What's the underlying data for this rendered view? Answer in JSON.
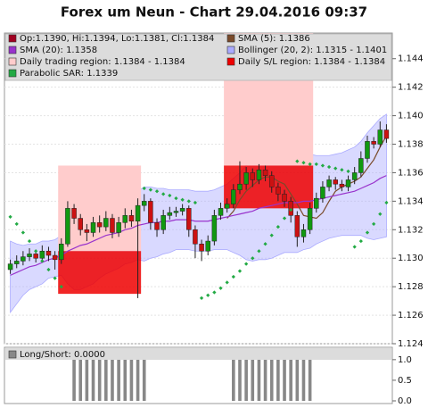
{
  "chart_data": [
    {
      "type": "candlestick",
      "title": "Forex um Neun - Chart 29.04.2016 09:37",
      "ylim": [
        1.124,
        1.1458
      ],
      "yticks": [
        1.124,
        1.126,
        1.128,
        {
          "value": 1.13,
          "label": "1.130"
        },
        1.132,
        1.134,
        1.136,
        1.138,
        {
          "value": 1.14,
          "label": "1.140"
        },
        1.142,
        1.144
      ],
      "grid": true,
      "series": [
        {
          "name": "Op:1.1390, Hi:1.1394, Lo:1.1381, Cl:1.1384",
          "kind": "candles",
          "color": "#a00020",
          "up_color": "#119911",
          "down_color": "#cc1111",
          "open": [
            1.1292,
            1.1296,
            1.1298,
            1.1301,
            1.1303,
            1.13,
            1.1305,
            1.1302,
            1.1299,
            1.131,
            1.1335,
            1.1328,
            1.132,
            1.1318,
            1.1325,
            1.1322,
            1.1328,
            1.1318,
            1.1325,
            1.133,
            1.1326,
            1.1337,
            1.134,
            1.1325,
            1.132,
            1.133,
            1.1332,
            1.1333,
            1.1335,
            1.132,
            1.131,
            1.1305,
            1.1312,
            1.133,
            1.1335,
            1.1338,
            1.1348,
            1.1352,
            1.136,
            1.1355,
            1.1362,
            1.1358,
            1.135,
            1.1345,
            1.134,
            1.133,
            1.1315,
            1.132,
            1.1335,
            1.1342,
            1.135,
            1.1355,
            1.1352,
            1.135,
            1.1355,
            1.136,
            1.137,
            1.1382,
            1.138,
            1.139
          ],
          "high": [
            1.1299,
            1.1302,
            1.1305,
            1.1307,
            1.1306,
            1.1309,
            1.1308,
            1.1305,
            1.1314,
            1.134,
            1.1338,
            1.1331,
            1.1324,
            1.1329,
            1.133,
            1.1333,
            1.1331,
            1.1329,
            1.1335,
            1.1334,
            1.1342,
            1.1345,
            1.1342,
            1.1328,
            1.1334,
            1.1336,
            1.1336,
            1.1338,
            1.1337,
            1.1323,
            1.1313,
            1.1316,
            1.1334,
            1.1339,
            1.1342,
            1.1352,
            1.1368,
            1.1364,
            1.1363,
            1.1366,
            1.1365,
            1.1361,
            1.1353,
            1.1348,
            1.1343,
            1.1333,
            1.1324,
            1.1339,
            1.1346,
            1.1354,
            1.1358,
            1.1357,
            1.1355,
            1.1358,
            1.1364,
            1.1375,
            1.1386,
            1.1385,
            1.1396,
            1.1394
          ],
          "low": [
            1.1289,
            1.1293,
            1.1295,
            1.1298,
            1.1297,
            1.1297,
            1.1298,
            1.1292,
            1.1296,
            1.1308,
            1.1324,
            1.1316,
            1.1312,
            1.1315,
            1.1318,
            1.1319,
            1.1314,
            1.1315,
            1.1321,
            1.1322,
            1.1272,
            1.1333,
            1.132,
            1.1315,
            1.1317,
            1.1327,
            1.1329,
            1.133,
            1.1315,
            1.13,
            1.1298,
            1.1302,
            1.1309,
            1.1327,
            1.1332,
            1.1335,
            1.1345,
            1.1348,
            1.135,
            1.1352,
            1.1354,
            1.1346,
            1.134,
            1.1336,
            1.1325,
            1.1308,
            1.1311,
            1.1317,
            1.1332,
            1.1339,
            1.1347,
            1.1348,
            1.1347,
            1.1347,
            1.1352,
            1.1357,
            1.1367,
            1.1377,
            1.1378,
            1.1381
          ],
          "close": [
            1.1296,
            1.1298,
            1.1301,
            1.1303,
            1.13,
            1.1305,
            1.1302,
            1.1299,
            1.131,
            1.1335,
            1.1328,
            1.132,
            1.1318,
            1.1325,
            1.1322,
            1.1328,
            1.1318,
            1.1325,
            1.133,
            1.1326,
            1.1337,
            1.134,
            1.1325,
            1.132,
            1.133,
            1.1332,
            1.1333,
            1.1335,
            1.132,
            1.131,
            1.1305,
            1.1312,
            1.133,
            1.1335,
            1.1338,
            1.1348,
            1.1352,
            1.136,
            1.1355,
            1.1362,
            1.1358,
            1.135,
            1.1345,
            1.134,
            1.133,
            1.1315,
            1.132,
            1.1335,
            1.1342,
            1.135,
            1.1355,
            1.1352,
            1.135,
            1.1355,
            1.136,
            1.137,
            1.1382,
            1.138,
            1.139,
            1.1384
          ]
        },
        {
          "name": "SMA (5): 1.1386",
          "kind": "line",
          "color": "#7a4a2a",
          "values": [
            null,
            null,
            null,
            null,
            null,
            null,
            null,
            null,
            null,
            null,
            null,
            null,
            null,
            null,
            null,
            null,
            null,
            null,
            null,
            null,
            null,
            null,
            null,
            null,
            null,
            null,
            null,
            null,
            null,
            null,
            null,
            null,
            null,
            null,
            1.1328,
            1.1333,
            1.1341,
            1.1347,
            1.1351,
            1.1355,
            1.1357,
            1.1357,
            1.1354,
            1.1352,
            1.1345,
            1.1338,
            1.133,
            1.1329,
            1.1328,
            1.1332,
            1.134,
            1.1347,
            1.135,
            1.1352,
            1.1354,
            1.1357,
            1.1363,
            1.1369,
            1.1378,
            1.1386
          ]
        },
        {
          "name": "SMA (20): 1.1358",
          "kind": "line",
          "color": "#9933cc",
          "values": [
            1.1288,
            1.129,
            1.1292,
            1.1294,
            1.1295,
            1.1297,
            1.1299,
            1.13,
            1.1302,
            1.1305,
            1.1307,
            1.1309,
            1.131,
            1.1312,
            1.1314,
            1.1316,
            1.1317,
            1.1318,
            1.132,
            1.1321,
            1.1323,
            1.1324,
            1.1325,
            1.1325,
            1.1326,
            1.1326,
            1.1327,
            1.1327,
            1.1327,
            1.1326,
            1.1326,
            1.1326,
            1.1327,
            1.1328,
            1.1329,
            1.133,
            1.1331,
            1.1332,
            1.1333,
            1.1335,
            1.1336,
            1.1337,
            1.1338,
            1.1339,
            1.1339,
            1.1339,
            1.134,
            1.134,
            1.1341,
            1.1342,
            1.1343,
            1.1344,
            1.1345,
            1.1346,
            1.1347,
            1.1349,
            1.1351,
            1.1353,
            1.1356,
            1.1358
          ]
        },
        {
          "name": "Bollinger (20, 2): 1.1315 - 1.1401",
          "kind": "band",
          "color": "#aaaaff",
          "upper": [
            1.1312,
            1.131,
            1.1309,
            1.131,
            1.131,
            1.1312,
            1.1312,
            1.1313,
            1.1316,
            1.133,
            1.1338,
            1.134,
            1.1341,
            1.1342,
            1.1342,
            1.1343,
            1.1343,
            1.1343,
            1.1344,
            1.1345,
            1.1347,
            1.135,
            1.135,
            1.1349,
            1.1349,
            1.1348,
            1.1348,
            1.1348,
            1.1348,
            1.1347,
            1.1347,
            1.1347,
            1.1348,
            1.135,
            1.1352,
            1.1356,
            1.136,
            1.1365,
            1.1368,
            1.1371,
            1.1373,
            1.1374,
            1.1374,
            1.1374,
            1.1374,
            1.1374,
            1.1374,
            1.1373,
            1.1372,
            1.1372,
            1.1372,
            1.1373,
            1.1374,
            1.1376,
            1.1378,
            1.1382,
            1.1388,
            1.1393,
            1.1398,
            1.1401
          ],
          "lower": [
            1.1262,
            1.1268,
            1.1274,
            1.1278,
            1.128,
            1.1282,
            1.1286,
            1.1287,
            1.1288,
            1.1282,
            1.1278,
            1.1278,
            1.128,
            1.1282,
            1.1286,
            1.1289,
            1.1291,
            1.1293,
            1.1296,
            1.1297,
            1.1299,
            1.1298,
            1.13,
            1.1301,
            1.1303,
            1.1304,
            1.1306,
            1.1306,
            1.1306,
            1.1305,
            1.1305,
            1.1305,
            1.1306,
            1.1306,
            1.1306,
            1.1304,
            1.1302,
            1.1299,
            1.1298,
            1.1299,
            1.1299,
            1.13,
            1.1302,
            1.1304,
            1.1304,
            1.1304,
            1.1306,
            1.1307,
            1.131,
            1.1312,
            1.1314,
            1.1315,
            1.1316,
            1.1316,
            1.1316,
            1.1316,
            1.1314,
            1.1313,
            1.1314,
            1.1315
          ]
        },
        {
          "name": "Daily trading region: 1.1384 - 1.1384",
          "kind": "region",
          "color": "#ffcccc",
          "regions": [
            {
              "from": 8,
              "to": 20,
              "low": 1.1305,
              "high": 1.1365
            },
            {
              "from": 34,
              "to": 47,
              "low": 1.1365,
              "high": 1.1458
            }
          ]
        },
        {
          "name": "Daily S/L region: 1.1384 - 1.1384",
          "kind": "region",
          "color": "#ee0000",
          "regions": [
            {
              "from": 8,
              "to": 20,
              "low": 1.1275,
              "high": 1.1305
            },
            {
              "from": 34,
              "to": 47,
              "low": 1.1335,
              "high": 1.1365
            }
          ]
        },
        {
          "name": "Parabolic SAR: 1.1339",
          "kind": "dots",
          "color": "#22aa44",
          "values": [
            1.1329,
            1.1324,
            1.1318,
            1.1312,
            1.1305,
            1.1298,
            1.1292,
            1.1286,
            1.128,
            null,
            null,
            null,
            null,
            null,
            null,
            null,
            null,
            null,
            null,
            null,
            null,
            1.1349,
            1.1348,
            1.1347,
            1.1345,
            1.1344,
            1.1342,
            1.1341,
            1.134,
            1.1339,
            1.1272,
            1.1274,
            1.1276,
            1.1279,
            1.1283,
            1.1287,
            1.1291,
            1.1296,
            1.13,
            1.1305,
            1.131,
            1.1316,
            1.1322,
            1.1328,
            1.1334,
            1.1368,
            1.1367,
            1.1366,
            1.1366,
            1.1365,
            1.1364,
            1.1363,
            1.1362,
            1.1361,
            1.1308,
            1.1312,
            1.1318,
            1.1324,
            1.1331,
            1.1339
          ]
        }
      ]
    },
    {
      "type": "bar",
      "ylim": [
        -0.065,
        1.3
      ],
      "yticks": [
        {
          "value": 0,
          "label": "0.0"
        },
        {
          "value": 0.5,
          "label": "0.5"
        },
        {
          "value": 1,
          "label": "1.0"
        }
      ],
      "series": [
        {
          "name": "Long/Short: 0.0000",
          "color": "#888888",
          "values": [
            0,
            0,
            0,
            0,
            0,
            0,
            0,
            0,
            0,
            0,
            1,
            1,
            1,
            1,
            1,
            1,
            1,
            1,
            1,
            1,
            1,
            1,
            0,
            0,
            0,
            0,
            0,
            0,
            0,
            0,
            0,
            0,
            0,
            0,
            0,
            1,
            1,
            1,
            1,
            1,
            1,
            1,
            1,
            1,
            1,
            1,
            1,
            1,
            0,
            0,
            0,
            0,
            0,
            0,
            0,
            0,
            0,
            0,
            0,
            0
          ]
        }
      ]
    }
  ]
}
